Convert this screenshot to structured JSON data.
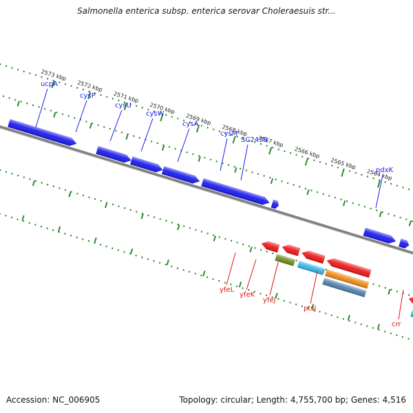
{
  "title": "Salmonella enterica subsp. enterica serovar Choleraesuis str...",
  "footer": {
    "accession": "Accession: NC_006905",
    "summary": "Topology: circular; Length: 4,755,700 bp; Genes: 4,516"
  },
  "colors": {
    "backbone": "#808080",
    "tick": "#2a8a2a",
    "forward_label": "#1a1aee",
    "reverse_label": "#dd1111",
    "blue": "#1717ee",
    "navy": "#4a4488",
    "khaki": "#b5b060",
    "steel": "#4e7fae",
    "red": "#ee1515",
    "olive": "#6f8a1e",
    "cyan": "#2fb5e5",
    "orange": "#f08a12",
    "teal": "#28c4c4"
  },
  "scale_labels": [
    "2573 kbp",
    "2572 kbp",
    "2571 kbp",
    "2570 kbp",
    "2569 kbp",
    "2568 kbp",
    "2567 kbp",
    "2566 kbp",
    "2565 kbp",
    "2564 kbp"
  ],
  "forward_genes": [
    "ucpA",
    "cysP",
    "cysU",
    "cysW",
    "cysA",
    "cysM",
    "SC2438",
    "pdxK"
  ],
  "reverse_genes": [
    "yfeL",
    "yfeK",
    "yfeJ",
    "ptsJ",
    "crr"
  ]
}
